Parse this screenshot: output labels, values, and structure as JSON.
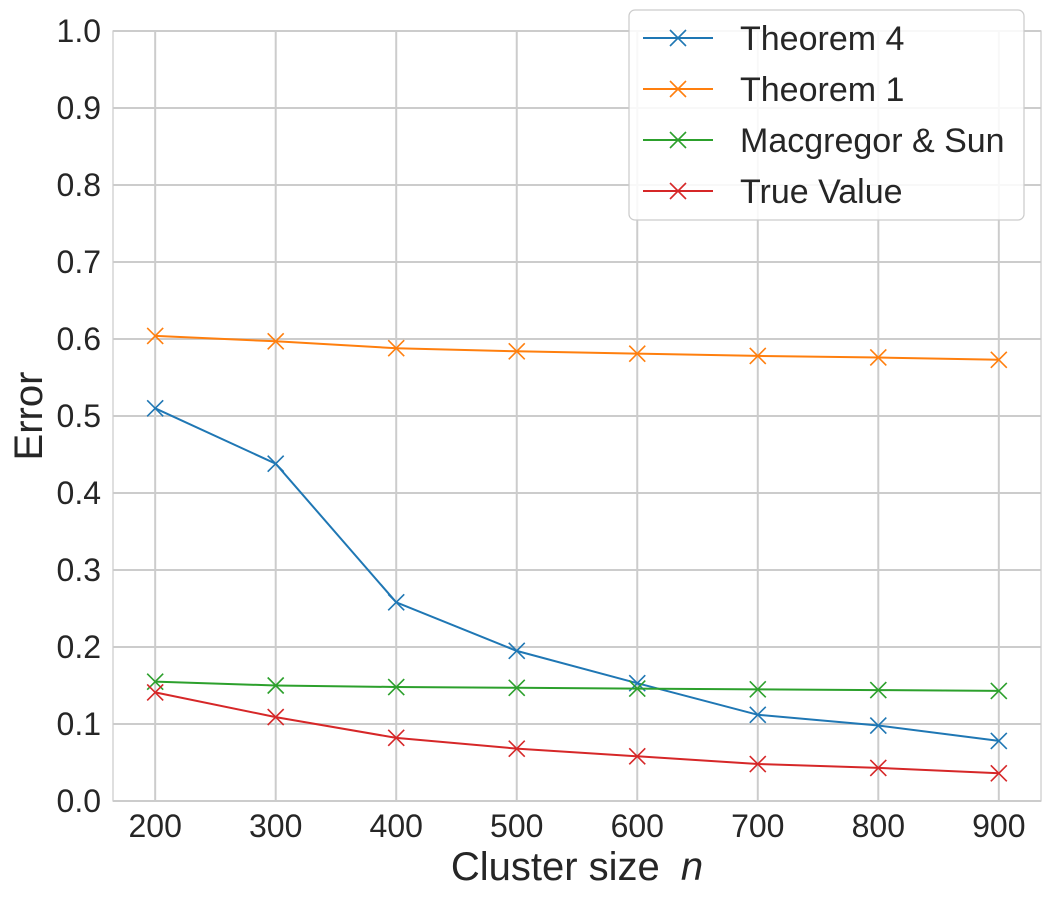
{
  "chart_data": {
    "type": "line",
    "title": "",
    "xlabel": "Cluster size",
    "xlabel_var": "n",
    "ylabel": "Error",
    "x": [
      200,
      300,
      400,
      500,
      600,
      700,
      800,
      900
    ],
    "xlim": [
      165,
      935
    ],
    "ylim": [
      0.0,
      1.0
    ],
    "xticks": [
      200,
      300,
      400,
      500,
      600,
      700,
      800,
      900
    ],
    "yticks": [
      0.0,
      0.1,
      0.2,
      0.3,
      0.4,
      0.5,
      0.6,
      0.7,
      0.8,
      0.9,
      1.0
    ],
    "grid": true,
    "marker": "x",
    "legend_position": "top-right",
    "series": [
      {
        "name": "Theorem 4",
        "color": "#1f77b4",
        "values": [
          0.51,
          0.438,
          0.258,
          0.195,
          0.153,
          0.112,
          0.098,
          0.078
        ]
      },
      {
        "name": "Theorem 1",
        "color": "#ff7f0e",
        "values": [
          0.604,
          0.597,
          0.588,
          0.584,
          0.581,
          0.578,
          0.576,
          0.573
        ]
      },
      {
        "name": "Macgregor & Sun",
        "color": "#2ca02c",
        "values": [
          0.155,
          0.15,
          0.148,
          0.147,
          0.146,
          0.145,
          0.144,
          0.143
        ]
      },
      {
        "name": "True Value",
        "color": "#d62728",
        "values": [
          0.141,
          0.109,
          0.082,
          0.068,
          0.058,
          0.048,
          0.043,
          0.036
        ]
      }
    ]
  }
}
